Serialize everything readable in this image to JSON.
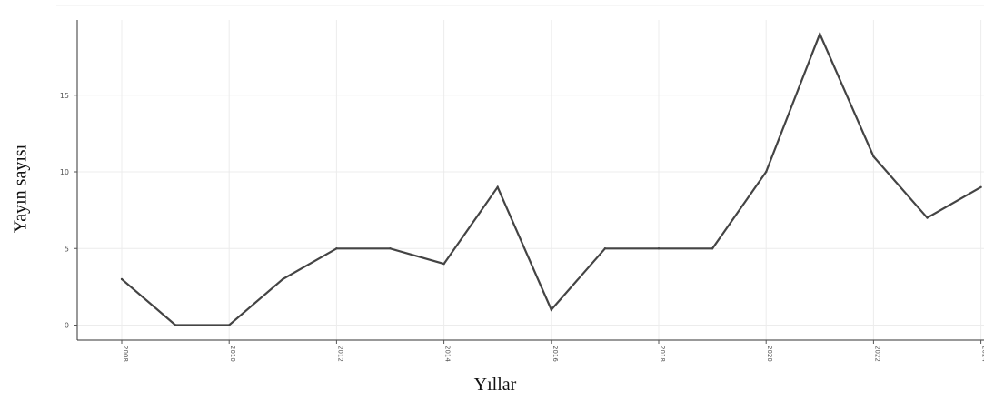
{
  "chart_data": {
    "type": "line",
    "xlabel": "Yıllar",
    "ylabel": "Yayın sayısı",
    "x": [
      2008,
      2009,
      2010,
      2011,
      2012,
      2013,
      2014,
      2015,
      2016,
      2017,
      2018,
      2019,
      2020,
      2021,
      2022,
      2023,
      2024
    ],
    "series": [
      {
        "values": [
          3,
          0,
          0,
          3,
          5,
          5,
          4,
          9,
          1,
          5,
          5,
          5,
          10,
          19,
          11,
          7,
          9
        ]
      }
    ],
    "x_ticks": [
      "2008",
      "2010",
      "2012",
      "2014",
      "2016",
      "2018",
      "2020",
      "2022",
      "2024"
    ],
    "y_ticks": [
      "0",
      "5",
      "10",
      "15"
    ],
    "ylim": [
      -0.9,
      20
    ],
    "grid": true,
    "colors": {
      "line": "#444444",
      "grid": "#ececec",
      "axis": "#333333"
    }
  }
}
